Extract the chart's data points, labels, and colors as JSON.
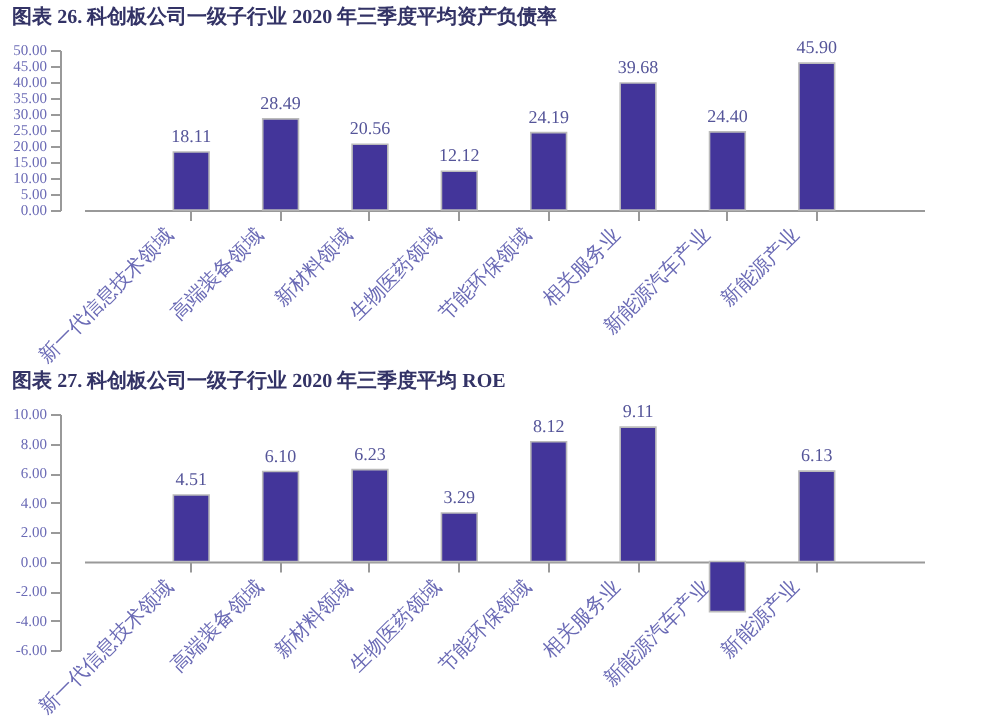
{
  "chart_data": [
    {
      "type": "bar",
      "title": "图表 26. 科创板公司一级子行业 2020 年三季度平均资产负债率",
      "categories": [
        "新一代信息技术领域",
        "高端装备领域",
        "新材料领域",
        "生物医药领域",
        "节能环保领域",
        "相关服务业",
        "新能源汽车产业",
        "新能源产业"
      ],
      "values": [
        18.11,
        28.49,
        20.56,
        12.12,
        24.19,
        39.68,
        24.4,
        45.9
      ],
      "value_labels": [
        "18.11",
        "28.49",
        "20.56",
        "12.12",
        "24.19",
        "39.68",
        "24.40",
        "45.90"
      ],
      "color": "#43359a",
      "ylim": [
        0,
        50
      ],
      "yticks": [
        {
          "value": 0,
          "label": "0.00"
        },
        {
          "value": 5,
          "label": "5.00"
        },
        {
          "value": 10,
          "label": "10.00"
        },
        {
          "value": 15,
          "label": "15.00"
        },
        {
          "value": 20,
          "label": "20.00"
        },
        {
          "value": 25,
          "label": "25.00"
        },
        {
          "value": 30,
          "label": "30.00"
        },
        {
          "value": 35,
          "label": "35.00"
        },
        {
          "value": 40,
          "label": "40.00"
        },
        {
          "value": 45,
          "label": "45.00"
        },
        {
          "value": 50,
          "label": "50.00"
        }
      ],
      "grid": false
    },
    {
      "type": "bar",
      "title": "图表 27. 科创板公司一级子行业 2020 年三季度平均 ROE",
      "categories": [
        "新一代信息技术领域",
        "高端装备领域",
        "新材料领域",
        "生物医药领域",
        "节能环保领域",
        "相关服务业",
        "新能源汽车产业",
        "新能源产业"
      ],
      "values": [
        4.51,
        6.1,
        6.23,
        3.29,
        8.12,
        9.11,
        -3.4,
        6.13
      ],
      "value_labels": [
        "4.51",
        "6.10",
        "6.23",
        "3.29",
        "8.12",
        "9.11",
        null,
        "6.13"
      ],
      "color": "#43359a",
      "ylim": [
        -6,
        10
      ],
      "yticks": [
        {
          "value": -6,
          "label": "-6.00"
        },
        {
          "value": -4,
          "label": "-4.00"
        },
        {
          "value": -2,
          "label": "-2.00"
        },
        {
          "value": 0,
          "label": "0.00"
        },
        {
          "value": 2,
          "label": "2.00"
        },
        {
          "value": 4,
          "label": "4.00"
        },
        {
          "value": 6,
          "label": "6.00"
        },
        {
          "value": 8,
          "label": "8.00"
        },
        {
          "value": 10,
          "label": "10.00"
        }
      ],
      "grid": false
    }
  ]
}
